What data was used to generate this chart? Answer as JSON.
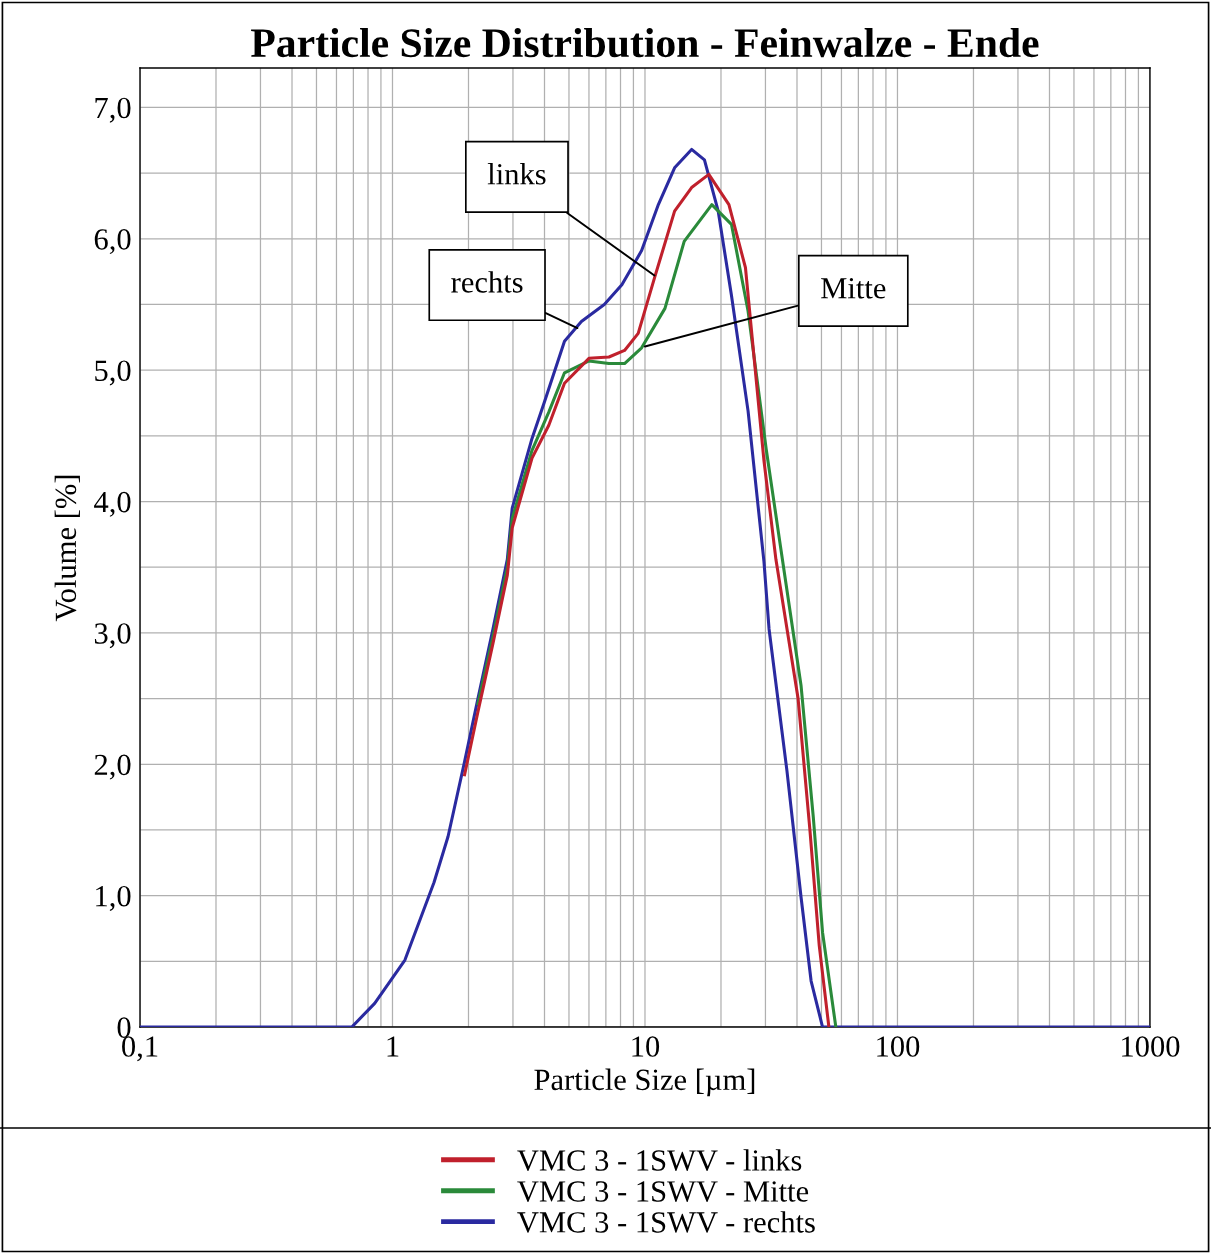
{
  "chart_data": {
    "type": "line",
    "title": "Particle Size Distribution - Feinwalze - Ende",
    "xlabel": "Particle Size [µm]",
    "ylabel": "Volume [%]",
    "log": "x",
    "xlim": [
      0.1,
      1000
    ],
    "xticks": [
      {
        "value": 0.1,
        "label": "0,1"
      },
      1,
      10,
      100,
      1000
    ],
    "ylim": [
      0,
      7.3
    ],
    "yticks": [
      0,
      {
        "value": 1,
        "label": "1,0"
      },
      {
        "value": 2,
        "label": "2,0"
      },
      {
        "value": 3,
        "label": "3,0"
      },
      {
        "value": 4,
        "label": "4,0"
      },
      {
        "value": 5,
        "label": "5,0"
      },
      {
        "value": 6,
        "label": "6,0"
      },
      {
        "value": 7,
        "label": "7,0"
      }
    ],
    "grid": true,
    "legend": "bottom",
    "marker": "none",
    "line_style": "solid",
    "series": [
      {
        "name": "VMC 3 - 1SWV - links",
        "color": "#c0202c",
        "x": [
          1.93,
          2.18,
          2.5,
          2.85,
          2.98,
          3.57,
          4.16,
          4.8,
          6.0,
          7.2,
          8.3,
          9.4,
          10.9,
          13.1,
          15.3,
          17.9,
          21.5,
          25,
          29.6,
          33,
          40.4,
          45,
          49,
          53.5
        ],
        "values": [
          1.92,
          2.4,
          2.92,
          3.44,
          3.8,
          4.33,
          4.58,
          4.9,
          5.09,
          5.1,
          5.15,
          5.28,
          5.7,
          6.21,
          6.39,
          6.49,
          6.26,
          5.78,
          4.31,
          3.56,
          2.5,
          1.5,
          0.62,
          0
        ]
      },
      {
        "name": "VMC 3 - 1SWV - Mitte",
        "color": "#2a8a3a",
        "x": [
          2.18,
          2.5,
          2.85,
          2.98,
          3.57,
          4.16,
          4.8,
          6.0,
          7.2,
          8.3,
          9.7,
          12.0,
          14.3,
          18.4,
          22,
          25.6,
          30.2,
          34.4,
          41.5,
          46.4,
          50.5,
          57
        ],
        "values": [
          2.46,
          2.97,
          3.5,
          3.87,
          4.39,
          4.68,
          4.98,
          5.07,
          5.05,
          5.05,
          5.17,
          5.47,
          5.98,
          6.26,
          6.11,
          5.45,
          4.4,
          3.66,
          2.6,
          1.6,
          0.72,
          0
        ]
      },
      {
        "name": "VMC 3 - 1SWV - rechts",
        "color": "#2a2aa0",
        "x": [
          0.1,
          0.69,
          0.85,
          1.12,
          1.46,
          1.66,
          1.93,
          2.18,
          2.5,
          2.85,
          2.98,
          3.57,
          4.0,
          4.8,
          5.6,
          6.9,
          8.1,
          9.7,
          11.3,
          13.1,
          15.3,
          17.2,
          19.5,
          22,
          25.6,
          29.6,
          31,
          36.5,
          41.5,
          45.5,
          50.5,
          1000
        ],
        "values": [
          0,
          0,
          0.18,
          0.51,
          1.1,
          1.45,
          2.02,
          2.5,
          3.03,
          3.56,
          3.95,
          4.48,
          4.76,
          5.22,
          5.37,
          5.5,
          5.65,
          5.91,
          6.26,
          6.54,
          6.68,
          6.6,
          6.21,
          5.57,
          4.69,
          3.54,
          3.03,
          1.95,
          0.99,
          0.35,
          0,
          0
        ]
      }
    ],
    "annotations": [
      {
        "text": "links",
        "x": 10.9,
        "y": 5.72
      },
      {
        "text": "rechts",
        "x": 5.4,
        "y": 5.32
      },
      {
        "text": "Mitte",
        "x": 10,
        "y": 5.18
      }
    ]
  }
}
